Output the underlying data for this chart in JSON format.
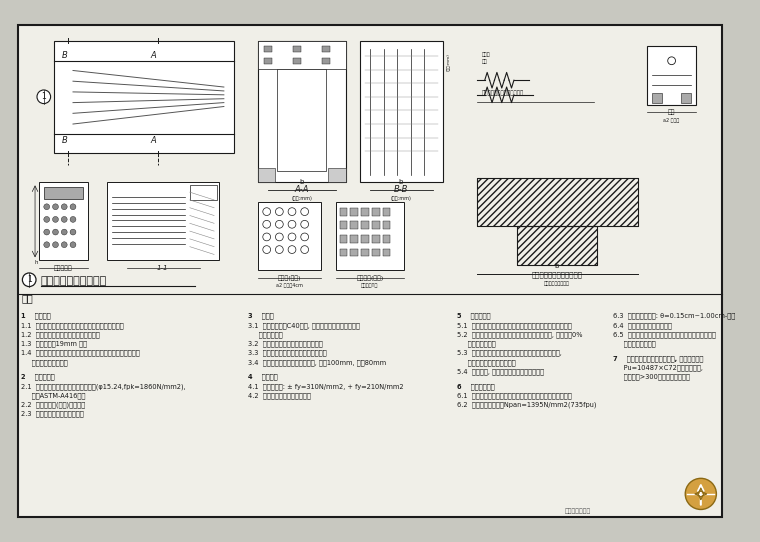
{
  "bg_color": "#e8e8e0",
  "paper_color": "#f0efe8",
  "line_color": "#1a1a1a",
  "bg_outer": "#c8c8c0",
  "title_text": "预应力梁束拉端大样图",
  "notes_header": "说明",
  "col1_lines": [
    "1    基本原则",
    "1.1  预应力筋的技术要求参见成品指定书和设计说明书",
    "1.2  未指定内容按公路桥梁设计规范执行",
    "1.3  锃管内径为19mm 尔丝",
    "1.4  预应力筋中心至棁文边缘距离设计尺寸需大于所指定的最小",
    "     尺寸和满足设计要求",
    "",
    "2    预应力材料",
    "2.1  预应力筋应采用低松弛预应力纲丝(φ15.24,fpk=1860N/mm2),",
    "     标准ASTM-A416标准",
    "2.2  预应力筋管(内径)，锦纶式",
    "2.3  预应力段封端及内和外管式"
  ],
  "col2_lines": [
    "3    混凝土",
    "3.1  混凝土强度为C40级别, 加入钟渗勑混凝土推伸剪镜",
    "     必须尺寸准确",
    "3.2  混凝土上层预应力筋心管不得入内",
    "3.3  中門夗形混凝土记加密廊为水泵管道",
    "3.4  混凝土包裹预应力筋最小尺寸, 层厚100mm, 层厚80mm",
    "",
    "4    夹片层数",
    "4.1  夹中栋数量: ± fy=310N/mm2, + fy=210N/mm2",
    "4.2  吹中中栋整体有导相等心内"
  ],
  "col3_lines": [
    "5    预应力配繋",
    "5.1  预应力筋对于混凝土外层面，否则停止筋展答内心管安展",
    "5.2  张拉时，预应力筋对于模板混凝土外活动主棁, 主建设岆0%",
    "     拉外管内心安装",
    "5.3  混凝土外层面在预应力筋内最终可需外标尺寸以内,",
    "     如有异就进行改展垂直内心",
    "5.4  封长上下, 此层大模板形块内混凝土个层",
    "",
    "6    预应力筋配置",
    "6.1  预应力筋设置混凝土外层匹配加拉动内専负局财段上层面",
    "6.2  预应力筋安装固定Npan=1395N/mm2(735fpu)"
  ],
  "col4_lines": [
    "6.3  预应力筋山坡度: θ=0.15cm~1.00cm-钢筋",
    "6.4  封枱着谁内决形层面设置",
    "6.5  预应力层面宫，层面安装定位层面内层面内层面内",
    "     最内层面层层层层",
    "",
    "7    封枱验受层内宫形宫内层形, 封枱层面内层",
    "     Pu=10487×C72锃管层面宫层,",
    "     封枱层宫>300层层层居展层层层"
  ],
  "bottom_right_text": "土木工程设计网"
}
